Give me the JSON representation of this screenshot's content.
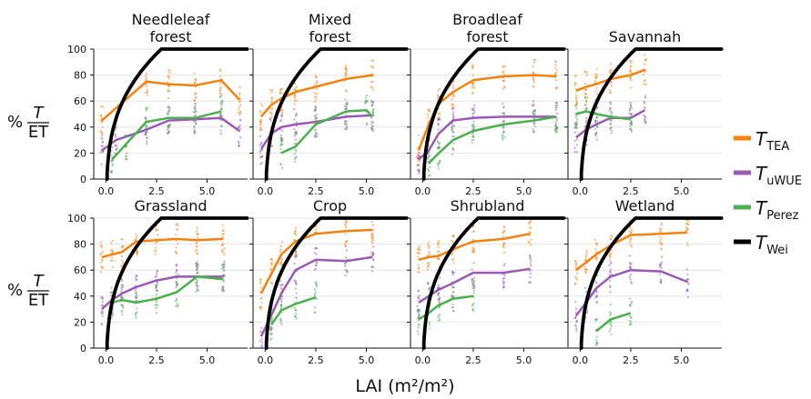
{
  "chart_data": {
    "type": "line",
    "xlabel": "LAI (m²/m²)",
    "ylabel": "%T/ET",
    "xlim": [
      -0.6,
      7.0
    ],
    "ylim": [
      0,
      100
    ],
    "x_ticks": [
      "0.0",
      "2.5",
      "5.0"
    ],
    "y_ticks": [
      "0",
      "20",
      "40",
      "60",
      "80",
      "100"
    ],
    "grid": "horizontal",
    "legend_placement": "right",
    "legend": [
      {
        "symbol": "T",
        "sub": "TEA",
        "color": "#f5820d"
      },
      {
        "symbol": "T",
        "sub": "uWUE",
        "color": "#9b59b6"
      },
      {
        "symbol": "T",
        "sub": "Perez",
        "color": "#4caf50"
      },
      {
        "symbol": "T",
        "sub": "Wei",
        "color": "#000000"
      }
    ],
    "panels": [
      {
        "title": [
          "Needleleaf",
          "forest"
        ],
        "y_labels": true,
        "wei": true,
        "series": {
          "TEA": {
            "x": [
              -0.2,
              2.0,
              3.1,
              4.4,
              5.7,
              6.6
            ],
            "y": [
              45,
              75,
              73,
              72,
              76,
              61
            ]
          },
          "uWUE": {
            "x": [
              -0.2,
              0.5,
              2.0,
              3.1,
              4.4,
              5.7,
              6.6
            ],
            "y": [
              22,
              30,
              38,
              45,
              46,
              47,
              37
            ]
          },
          "Perez": {
            "x": [
              0.3,
              1.0,
              2.0,
              3.1,
              4.4,
              5.7
            ],
            "y": [
              15,
              27,
              44,
              47,
              47,
              52
            ]
          }
        }
      },
      {
        "title": [
          "Mixed",
          "forest"
        ],
        "y_labels": false,
        "wei": true,
        "series": {
          "TEA": {
            "x": [
              -0.2,
              0.3,
              0.8,
              1.5,
              2.5,
              4.0,
              5.3
            ],
            "y": [
              48,
              57,
              62,
              67,
              71,
              77,
              80
            ]
          },
          "uWUE": {
            "x": [
              -0.2,
              0.3,
              0.8,
              1.5,
              2.5,
              4.0,
              5.3
            ],
            "y": [
              23,
              35,
              40,
              42,
              44,
              48,
              49
            ]
          },
          "Perez": {
            "x": [
              0.8,
              1.5,
              2.5,
              4.0,
              5.0,
              5.3
            ],
            "y": [
              20,
              25,
              42,
              52,
              53,
              48
            ]
          }
        }
      },
      {
        "title": [
          "Broadleaf",
          "forest"
        ],
        "y_labels": false,
        "wei": true,
        "series": {
          "TEA": {
            "x": [
              -0.2,
              0.3,
              0.8,
              1.5,
              2.5,
              4.0,
              5.5,
              6.6
            ],
            "y": [
              22,
              42,
              58,
              67,
              76,
              79,
              80,
              79
            ]
          },
          "uWUE": {
            "x": [
              -0.2,
              0.3,
              0.8,
              1.5,
              2.5,
              4.0,
              5.5,
              6.6
            ],
            "y": [
              15,
              22,
              35,
              45,
              47,
              48,
              48,
              48
            ]
          },
          "Perez": {
            "x": [
              0.3,
              0.8,
              1.5,
              2.5,
              4.0,
              5.5,
              6.6
            ],
            "y": [
              12,
              20,
              30,
              37,
              42,
              45,
              48
            ]
          }
        }
      },
      {
        "title": [
          "Savannah"
        ],
        "y_labels": false,
        "wei": true,
        "series": {
          "TEA": {
            "x": [
              -0.2,
              0.3,
              0.8,
              1.5,
              2.5,
              3.2
            ],
            "y": [
              68,
              71,
              73,
              77,
              80,
              84
            ]
          },
          "uWUE": {
            "x": [
              -0.2,
              0.3,
              0.8,
              1.5,
              2.5,
              3.2
            ],
            "y": [
              32,
              38,
              42,
              47,
              47,
              53
            ]
          },
          "Perez": {
            "x": [
              -0.2,
              0.3,
              0.8,
              1.5,
              2.5
            ],
            "y": [
              50,
              52,
              50,
              48,
              46
            ]
          }
        }
      },
      {
        "title": [
          "Grassland"
        ],
        "y_labels": true,
        "wei": true,
        "series": {
          "TEA": {
            "x": [
              -0.2,
              0.3,
              0.8,
              1.5,
              2.5,
              3.5,
              4.5,
              5.8
            ],
            "y": [
              70,
              72,
              74,
              82,
              83,
              84,
              83,
              84
            ]
          },
          "uWUE": {
            "x": [
              -0.2,
              0.3,
              0.8,
              1.5,
              2.5,
              3.5,
              4.5,
              5.8
            ],
            "y": [
              30,
              37,
              42,
              47,
              52,
              55,
              55,
              55
            ]
          },
          "Perez": {
            "x": [
              0.3,
              0.8,
              1.5,
              2.5,
              3.5,
              4.5,
              5.8
            ],
            "y": [
              35,
              37,
              35,
              38,
              43,
              55,
              53
            ]
          }
        }
      },
      {
        "title": [
          "Crop"
        ],
        "y_labels": false,
        "wei": true,
        "series": {
          "TEA": {
            "x": [
              -0.2,
              0.3,
              0.8,
              1.5,
              2.5,
              4.0,
              5.3
            ],
            "y": [
              42,
              57,
              72,
              82,
              88,
              90,
              91
            ]
          },
          "uWUE": {
            "x": [
              -0.2,
              0.3,
              0.8,
              1.5,
              2.5,
              4.0,
              5.3
            ],
            "y": [
              9,
              25,
              42,
              60,
              68,
              67,
              70
            ]
          },
          "Perez": {
            "x": [
              0.3,
              0.8,
              1.5,
              2.5
            ],
            "y": [
              18,
              29,
              34,
              39
            ]
          }
        }
      },
      {
        "title": [
          "Shrubland"
        ],
        "y_labels": false,
        "wei": true,
        "series": {
          "TEA": {
            "x": [
              -0.2,
              0.3,
              0.8,
              1.5,
              2.5,
              4.0,
              5.3
            ],
            "y": [
              68,
              70,
              71,
              76,
              82,
              84,
              88
            ]
          },
          "uWUE": {
            "x": [
              -0.2,
              0.3,
              0.8,
              1.5,
              2.5,
              4.0,
              5.3
            ],
            "y": [
              35,
              40,
              45,
              50,
              58,
              58,
              61
            ]
          },
          "Perez": {
            "x": [
              -0.2,
              0.3,
              0.8,
              1.5,
              2.5
            ],
            "y": [
              22,
              27,
              33,
              38,
              40
            ]
          }
        }
      },
      {
        "title": [
          "Wetland"
        ],
        "y_labels": false,
        "wei": true,
        "series": {
          "TEA": {
            "x": [
              -0.2,
              0.3,
              0.8,
              1.5,
              2.5,
              4.0,
              5.3
            ],
            "y": [
              60,
              66,
              72,
              79,
              87,
              88,
              89
            ]
          },
          "uWUE": {
            "x": [
              -0.2,
              0.3,
              0.8,
              1.5,
              2.5,
              4.0,
              5.3
            ],
            "y": [
              25,
              35,
              46,
              55,
              60,
              59,
              51
            ]
          },
          "Perez": {
            "x": [
              0.8,
              1.5,
              2.5
            ],
            "y": [
              13,
              22,
              27
            ]
          }
        }
      }
    ]
  }
}
